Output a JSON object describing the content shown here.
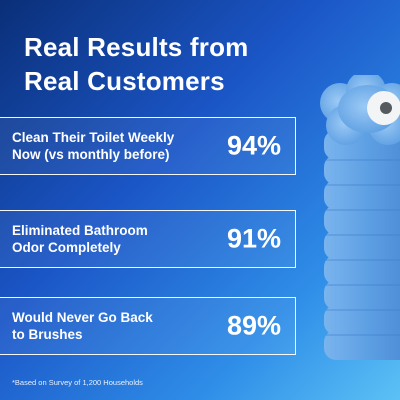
{
  "headline": {
    "line1": "Real Results from",
    "line2": "Real Customers"
  },
  "stats": [
    {
      "label_line1": "Clean Their Toilet Weekly",
      "label_line2": "Now (vs monthly before)",
      "percent": "94%"
    },
    {
      "label_line1": "Eliminated Bathroom",
      "label_line2": "Odor Completely",
      "percent": "91%"
    },
    {
      "label_line1": "Would Never Go Back",
      "label_line2": "to Brushes",
      "percent": "89%"
    }
  ],
  "footnote": "*Based on Survey of 1,200 Households",
  "colors": {
    "background_dark": "#0a2f78",
    "background_light": "#5cc1f5",
    "text": "#ffffff",
    "product_blue": "#5d9fe3"
  },
  "product_image": "stack-of-blue-toilet-cleaning-pads"
}
